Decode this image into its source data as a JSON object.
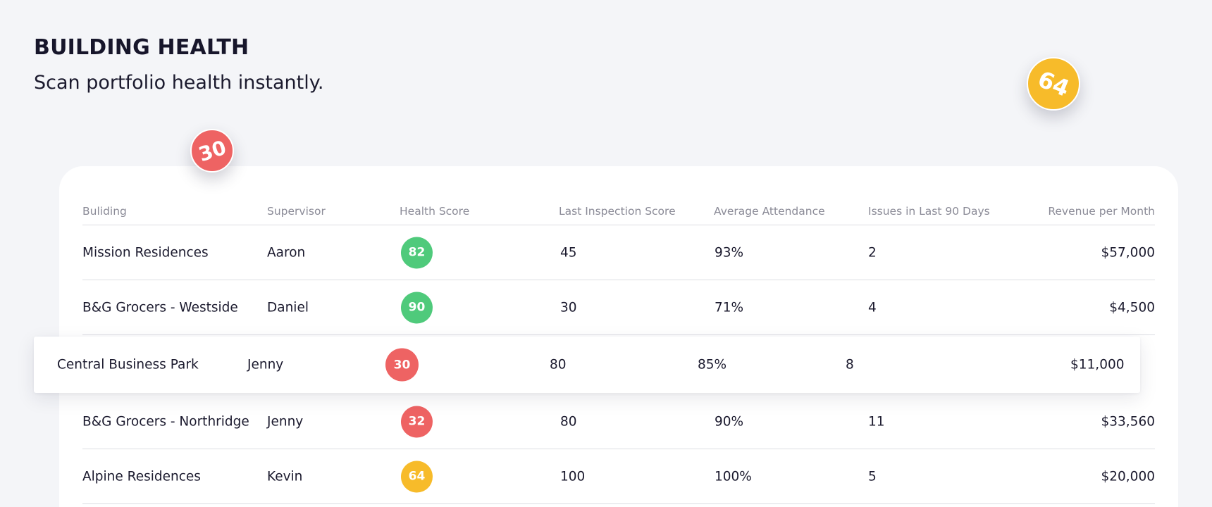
{
  "header": {
    "title": "BUILDING HEALTH",
    "subtitle": "Scan portfolio health instantly."
  },
  "colors": {
    "good": "#4fca7b",
    "bad": "#ee6363",
    "warn": "#f7bb2a",
    "background": "#f4f5f8",
    "card": "#ffffff"
  },
  "table": {
    "columns": [
      "Buliding",
      "Supervisor",
      "Health Score",
      "Last Inspection Score",
      "Average Attendance",
      "Issues in Last 90 Days",
      "Revenue per Month"
    ],
    "rows": [
      {
        "building": "Mission Residences",
        "supervisor": "Aaron",
        "health": "82",
        "health_status": "good",
        "inspection": "45",
        "attendance": "93%",
        "issues": "2",
        "revenue": "$57,000"
      },
      {
        "building": "B&G Grocers - Westside",
        "supervisor": "Daniel",
        "health": "90",
        "health_status": "good",
        "inspection": "30",
        "attendance": "71%",
        "issues": "4",
        "revenue": "$4,500"
      },
      {
        "building": "B&G Grocers - Northridge",
        "supervisor": "Jenny",
        "health": "32",
        "health_status": "bad",
        "inspection": "80",
        "attendance": "90%",
        "issues": "11",
        "revenue": "$33,560"
      },
      {
        "building": "Alpine Residences",
        "supervisor": "Kevin",
        "health": "64",
        "health_status": "warn",
        "inspection": "100",
        "attendance": "100%",
        "issues": "5",
        "revenue": "$20,000"
      }
    ]
  },
  "dragged_row": {
    "building": "Central Business Park",
    "supervisor": "Jenny",
    "health": "30",
    "health_status": "bad",
    "inspection": "80",
    "attendance": "85%",
    "issues": "8",
    "revenue": "$11,000"
  },
  "floating_badges": [
    {
      "value": "30",
      "status": "bad"
    },
    {
      "value": "64",
      "status": "warn"
    }
  ]
}
